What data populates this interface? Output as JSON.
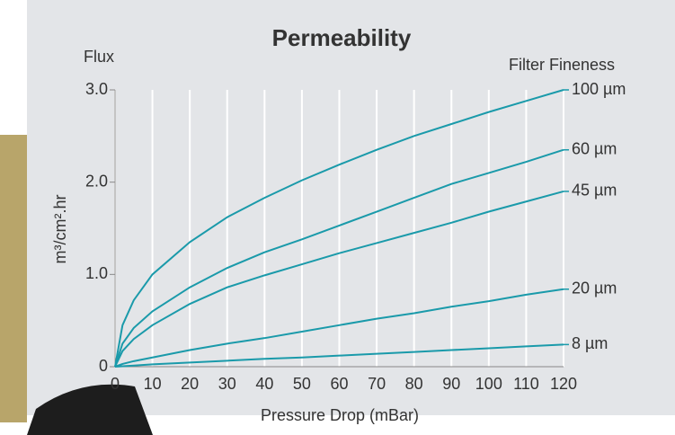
{
  "chart_data": {
    "type": "line",
    "title": "Permeability",
    "y_label_top": "Flux",
    "y_axis_label": "m³/cm².hr",
    "x_axis_label": "Pressure Drop (mBar)",
    "legend_title": "Filter Fineness",
    "x": [
      0,
      2,
      5,
      10,
      20,
      30,
      40,
      50,
      60,
      70,
      80,
      90,
      100,
      110,
      120
    ],
    "series": [
      {
        "name": "100 µm",
        "color": "#1a9aaa",
        "values": [
          0,
          0.45,
          0.72,
          1.0,
          1.35,
          1.62,
          1.83,
          2.02,
          2.19,
          2.35,
          2.5,
          2.63,
          2.76,
          2.88,
          3.0
        ]
      },
      {
        "name": "60 µm",
        "color": "#1a9aaa",
        "values": [
          0,
          0.25,
          0.42,
          0.6,
          0.86,
          1.07,
          1.24,
          1.38,
          1.53,
          1.68,
          1.83,
          1.98,
          2.1,
          2.22,
          2.35
        ]
      },
      {
        "name": "45 µm",
        "color": "#1a9aaa",
        "values": [
          0,
          0.17,
          0.3,
          0.45,
          0.68,
          0.86,
          0.99,
          1.11,
          1.23,
          1.34,
          1.45,
          1.56,
          1.68,
          1.79,
          1.9
        ]
      },
      {
        "name": "20 µm",
        "color": "#1a9aaa",
        "values": [
          0,
          0.03,
          0.06,
          0.1,
          0.18,
          0.25,
          0.31,
          0.38,
          0.45,
          0.52,
          0.58,
          0.65,
          0.71,
          0.78,
          0.84
        ]
      },
      {
        "name": "8 µm",
        "color": "#1a9aaa",
        "values": [
          0,
          0.005,
          0.012,
          0.025,
          0.045,
          0.065,
          0.085,
          0.1,
          0.12,
          0.14,
          0.16,
          0.18,
          0.2,
          0.22,
          0.24
        ]
      }
    ],
    "xlim": [
      0,
      120
    ],
    "xticks": [
      0,
      10,
      20,
      30,
      40,
      50,
      60,
      70,
      80,
      90,
      100,
      110,
      120
    ],
    "ylim": [
      0,
      3
    ],
    "yticks": [
      0,
      {
        "value": 1,
        "label": "1.0"
      },
      {
        "value": 2,
        "label": "2.0"
      },
      {
        "value": 3,
        "label": "3.0"
      }
    ],
    "grid": "x"
  }
}
